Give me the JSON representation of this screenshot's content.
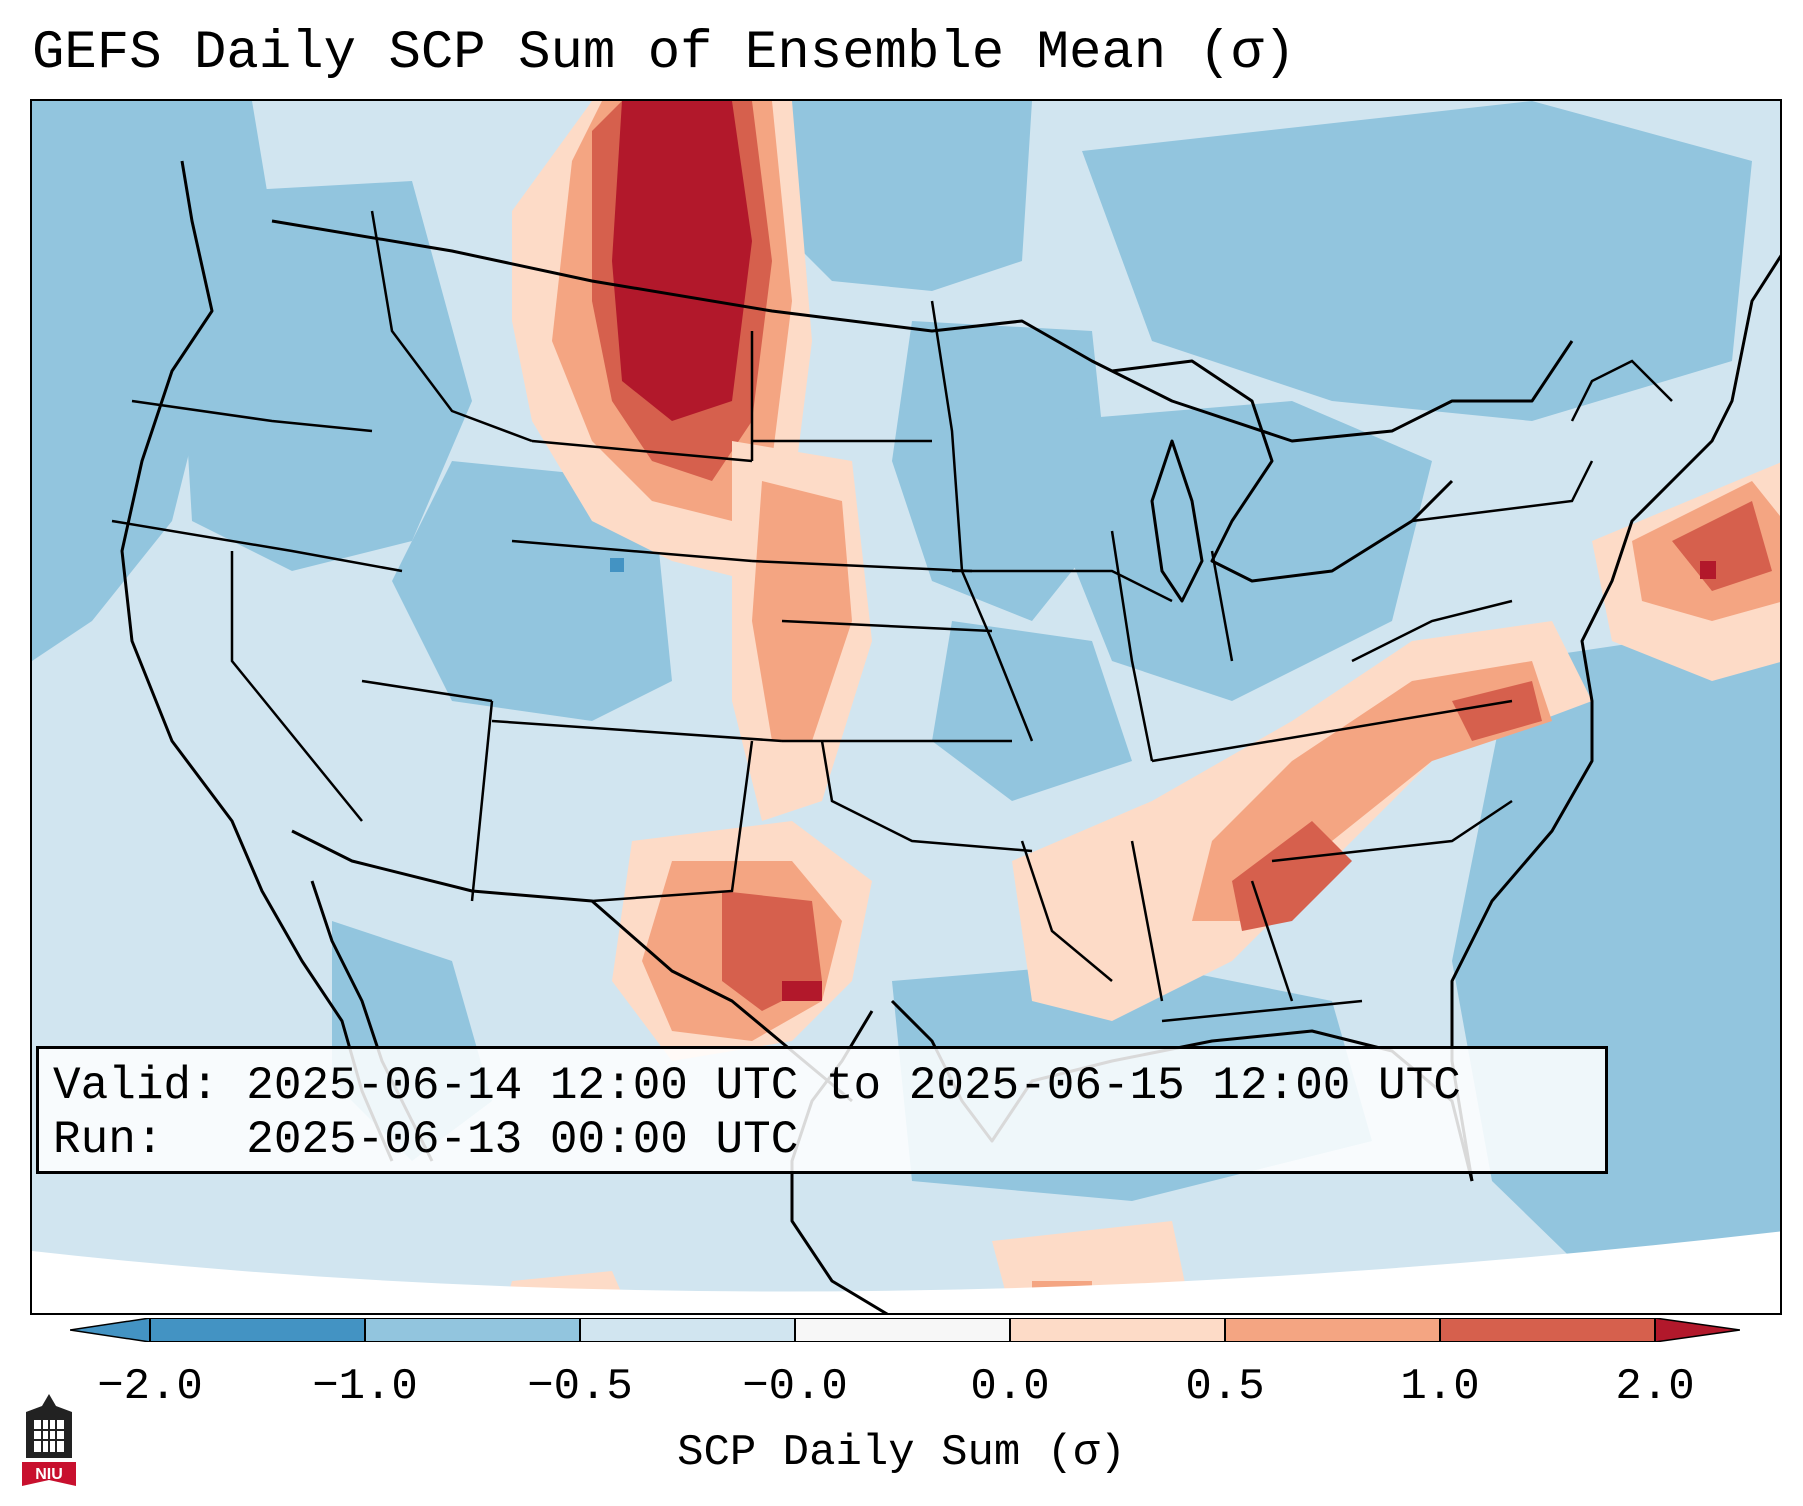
{
  "title": "GEFS Daily SCP Sum of Ensemble Mean (σ)",
  "info": {
    "valid_line": "Valid: 2025-06-14 12:00 UTC to 2025-06-15 12:00 UTC",
    "run_line": "Run:   2025-06-13 00:00 UTC"
  },
  "colorbar": {
    "label": "SCP Daily Sum (σ)",
    "ticks": [
      "−2.0",
      "−1.0",
      "−0.5",
      "−0.0",
      "0.0",
      "0.5",
      "1.0",
      "2.0"
    ],
    "colors": [
      "#4393c3",
      "#92c5de",
      "#d1e5f0",
      "#f7f7f7",
      "#fddbc7",
      "#f4a582",
      "#d6604d",
      "#b2182b"
    ]
  },
  "logo": {
    "text": "NIU",
    "icon": "university-tower-icon"
  },
  "map": {
    "projection": "Lambert conformal, contiguous United States",
    "background_value_color": "#d1e5f0"
  }
}
